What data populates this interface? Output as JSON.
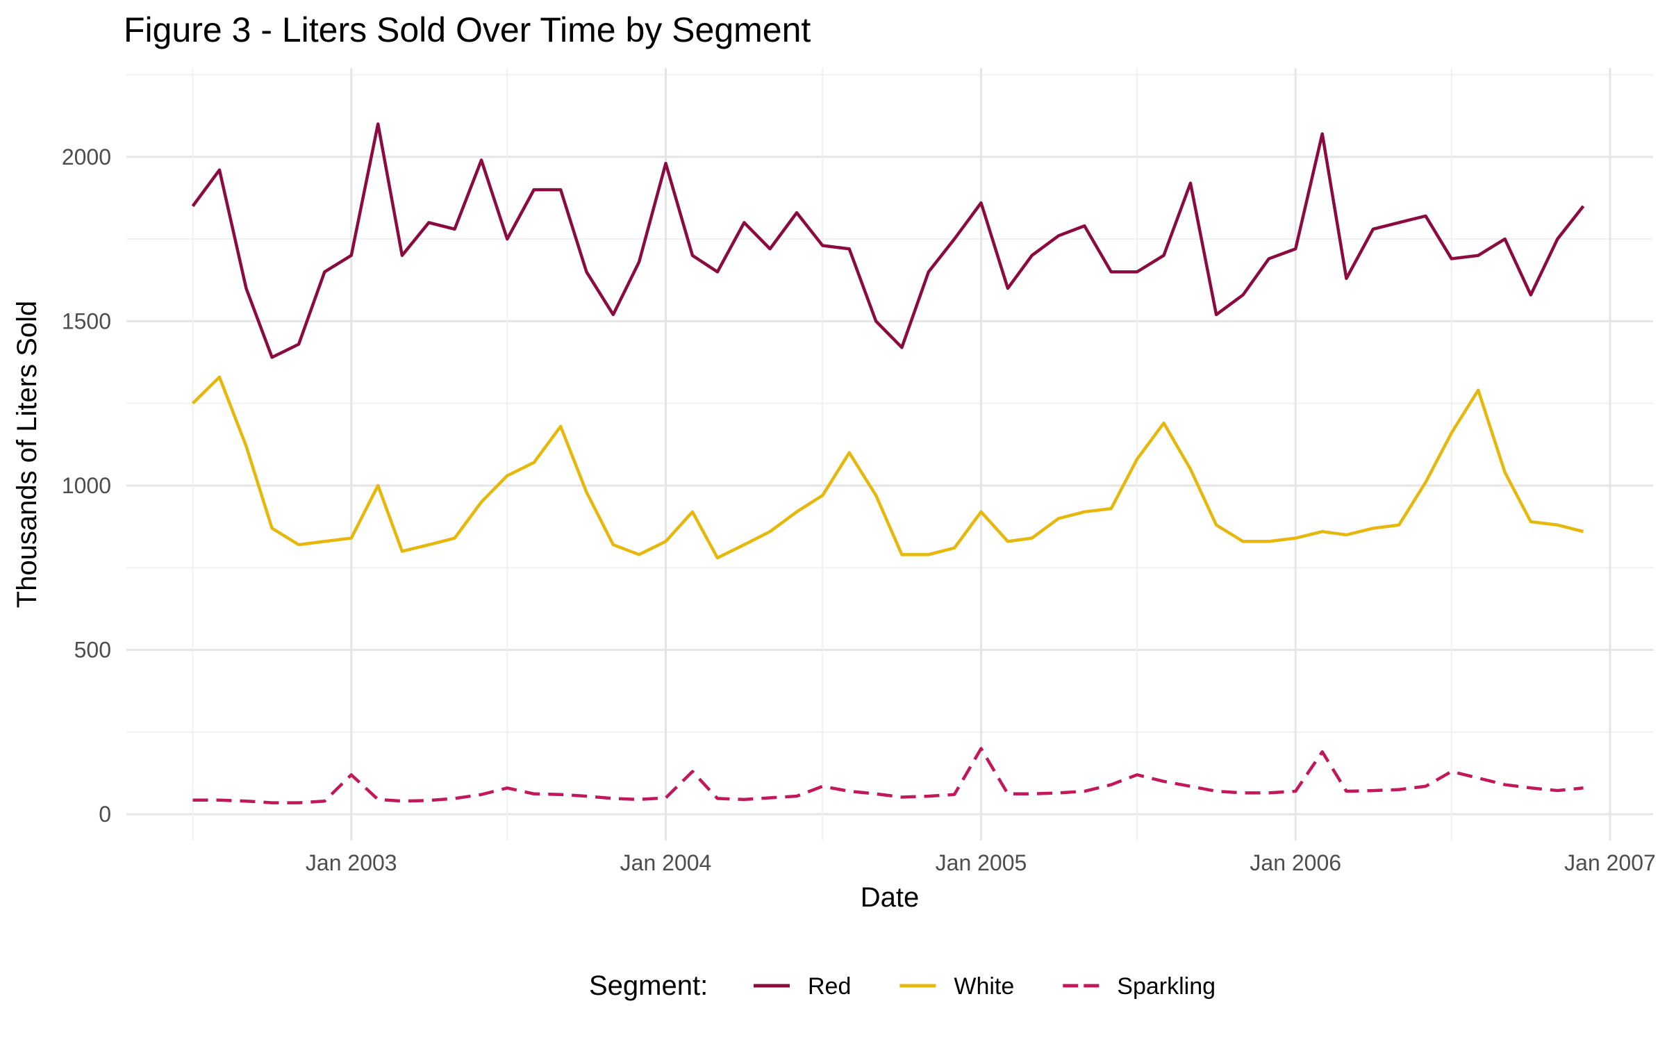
{
  "chart_data": {
    "type": "line",
    "title": "Figure 3 - Liters Sold Over Time by Segment",
    "xlabel": "Date",
    "ylabel": "Thousands of Liters Sold",
    "x_ticks": [
      "Jan 2003",
      "Jan 2004",
      "Jan 2005",
      "Jan 2006",
      "Jan 2007"
    ],
    "y_ticks": [
      0,
      500,
      1000,
      1500,
      2000
    ],
    "ylim": [
      -80,
      2270
    ],
    "xlim": [
      "2002-04-15",
      "2007-02-20"
    ],
    "grid": true,
    "legend": {
      "title": "Segment:",
      "placement": "bottom"
    },
    "x": [
      "2002-07-01",
      "2002-08-01",
      "2002-09-01",
      "2002-10-01",
      "2002-11-01",
      "2002-12-01",
      "2003-01-01",
      "2003-02-01",
      "2003-03-01",
      "2003-04-01",
      "2003-05-01",
      "2003-06-01",
      "2003-07-01",
      "2003-08-01",
      "2003-09-01",
      "2003-10-01",
      "2003-11-01",
      "2003-12-01",
      "2004-01-01",
      "2004-02-01",
      "2004-03-01",
      "2004-04-01",
      "2004-05-01",
      "2004-06-01",
      "2004-07-01",
      "2004-08-01",
      "2004-09-01",
      "2004-10-01",
      "2004-11-01",
      "2004-12-01",
      "2005-01-01",
      "2005-02-01",
      "2005-03-01",
      "2005-04-01",
      "2005-05-01",
      "2005-06-01",
      "2005-07-01",
      "2005-08-01",
      "2005-09-01",
      "2005-10-01",
      "2005-11-01",
      "2005-12-01",
      "2006-01-01",
      "2006-02-01",
      "2006-03-01",
      "2006-04-01",
      "2006-05-01",
      "2006-06-01",
      "2006-07-01",
      "2006-08-01",
      "2006-09-01",
      "2006-10-01",
      "2006-11-01",
      "2006-12-01"
    ],
    "series": [
      {
        "name": "Red",
        "color": "#8b0a3f",
        "dash": "solid",
        "values": [
          1850,
          1960,
          1600,
          1390,
          1430,
          1650,
          1700,
          2100,
          1700,
          1800,
          1780,
          1990,
          1750,
          1900,
          1900,
          1650,
          1520,
          1680,
          1980,
          1700,
          1650,
          1800,
          1720,
          1830,
          1730,
          1720,
          1500,
          1420,
          1650,
          1750,
          1860,
          1600,
          1700,
          1760,
          1790,
          1650,
          1650,
          1700,
          1920,
          1520,
          1580,
          1690,
          1720,
          2070,
          1630,
          1780,
          1800,
          1820,
          1690,
          1700,
          1750,
          1580,
          1750,
          1850
        ]
      },
      {
        "name": "White",
        "color": "#e5b80b",
        "dash": "solid",
        "values": [
          1250,
          1330,
          1120,
          870,
          820,
          830,
          840,
          1000,
          800,
          820,
          840,
          950,
          1030,
          1070,
          1180,
          980,
          820,
          790,
          830,
          920,
          780,
          820,
          860,
          920,
          970,
          1100,
          970,
          790,
          790,
          810,
          920,
          830,
          840,
          900,
          920,
          930,
          1080,
          1190,
          1050,
          880,
          830,
          830,
          840,
          860,
          850,
          870,
          880,
          1010,
          1160,
          1290,
          1040,
          890,
          880,
          860
        ]
      },
      {
        "name": "Sparkling",
        "color": "#c2185b",
        "dash": "dashed",
        "values": [
          43,
          43,
          40,
          35,
          35,
          40,
          120,
          45,
          40,
          42,
          48,
          60,
          80,
          62,
          60,
          55,
          48,
          45,
          50,
          130,
          48,
          45,
          50,
          55,
          85,
          70,
          62,
          52,
          55,
          60,
          200,
          62,
          62,
          65,
          70,
          90,
          120,
          100,
          85,
          70,
          65,
          65,
          70,
          190,
          70,
          72,
          75,
          85,
          130,
          110,
          90,
          80,
          72,
          80
        ]
      }
    ]
  }
}
